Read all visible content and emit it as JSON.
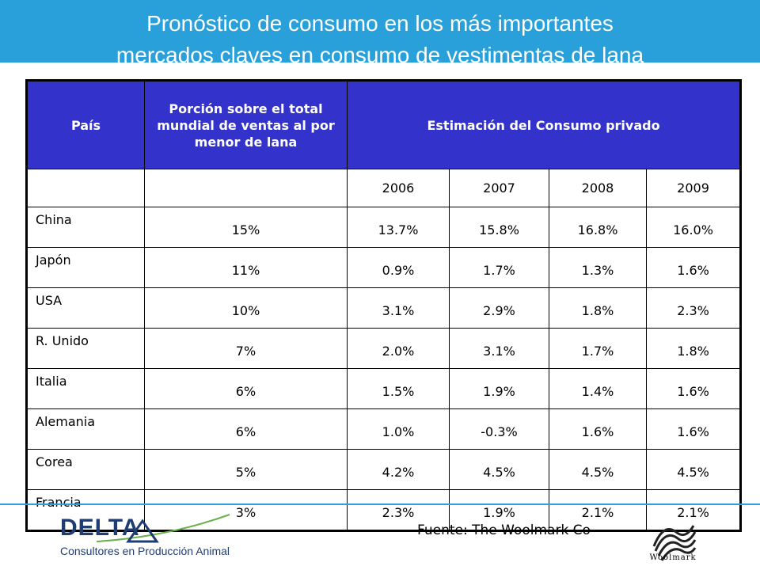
{
  "title": {
    "line1": "Pronóstico de consumo en los más importantes",
    "line2": "mercados claves en consumo de vestimentas de lana"
  },
  "table": {
    "headers": {
      "country": "País",
      "share": "Porción sobre el total mundial de ventas al por menor de lana",
      "estimate": "Estimación del Consumo privado"
    },
    "years": [
      "2006",
      "2007",
      "2008",
      "2009"
    ],
    "rows": [
      {
        "country": "China",
        "share": "15%",
        "values": [
          "13.7%",
          "15.8%",
          "16.8%",
          "16.0%"
        ]
      },
      {
        "country": "Japón",
        "share": "11%",
        "values": [
          "0.9%",
          "1.7%",
          "1.3%",
          "1.6%"
        ]
      },
      {
        "country": "USA",
        "share": "10%",
        "values": [
          "3.1%",
          "2.9%",
          "1.8%",
          "2.3%"
        ]
      },
      {
        "country": "R. Unido",
        "share": "7%",
        "values": [
          "2.0%",
          "3.1%",
          "1.7%",
          "1.8%"
        ]
      },
      {
        "country": "Italia",
        "share": "6%",
        "values": [
          "1.5%",
          "1.9%",
          "1.4%",
          "1.6%"
        ]
      },
      {
        "country": "Alemania",
        "share": "6%",
        "values": [
          "1.0%",
          "-0.3%",
          "1.6%",
          "1.6%"
        ]
      },
      {
        "country": "Corea",
        "share": "5%",
        "values": [
          "4.2%",
          "4.5%",
          "4.5%",
          "4.5%"
        ]
      },
      {
        "country": "Francia",
        "share": "3%",
        "values": [
          "2.3%",
          "1.9%",
          "2.1%",
          "2.1%"
        ]
      }
    ]
  },
  "footer": {
    "source": "Fuente: The Woolmark Co",
    "delta_logo": {
      "name": "DELTA",
      "subtitle": "Consultores en Producción Animal"
    },
    "woolmark_logo": {
      "name": "Woolmark"
    }
  },
  "colors": {
    "banner": "#2aa0da",
    "table_header": "#3333cc",
    "delta_blue": "#1f3c73"
  }
}
